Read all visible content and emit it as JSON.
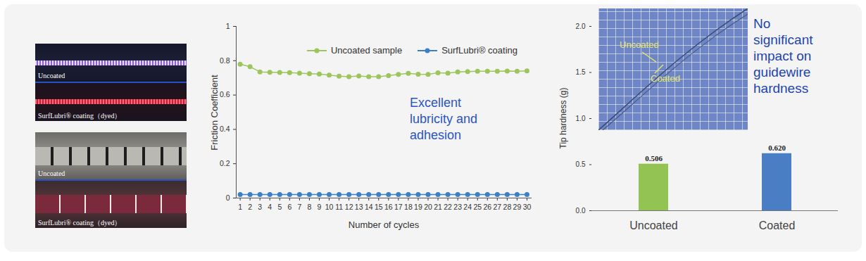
{
  "photos": [
    {
      "labels": [
        "Uncoated",
        "SurfLubri® coating（dyed）"
      ]
    },
    {
      "labels": [
        "Uncoated",
        "SurfLubri® coating（dyed）"
      ]
    }
  ],
  "chart_data": [
    {
      "type": "line",
      "x": [
        1,
        2,
        3,
        4,
        5,
        6,
        7,
        8,
        9,
        10,
        11,
        12,
        13,
        14,
        15,
        16,
        17,
        18,
        19,
        20,
        21,
        22,
        23,
        24,
        25,
        26,
        27,
        28,
        29,
        30
      ],
      "series": [
        {
          "name": "Uncoated sample",
          "color": "#9cc55c",
          "marker": "circle",
          "values": [
            0.78,
            0.765,
            0.735,
            0.733,
            0.732,
            0.731,
            0.727,
            0.724,
            0.722,
            0.716,
            0.71,
            0.707,
            0.711,
            0.707,
            0.707,
            0.713,
            0.72,
            0.726,
            0.721,
            0.72,
            0.73,
            0.727,
            0.735,
            0.737,
            0.739,
            0.739,
            0.739,
            0.74,
            0.739,
            0.741
          ]
        },
        {
          "name": "SurfLubri® coating",
          "color": "#3b7fc8",
          "marker": "circle",
          "values": [
            0.02,
            0.02,
            0.02,
            0.02,
            0.02,
            0.02,
            0.02,
            0.02,
            0.02,
            0.02,
            0.02,
            0.02,
            0.02,
            0.02,
            0.02,
            0.02,
            0.02,
            0.02,
            0.02,
            0.02,
            0.02,
            0.02,
            0.02,
            0.02,
            0.02,
            0.02,
            0.02,
            0.02,
            0.02,
            0.02
          ]
        }
      ],
      "xlabel": "Number of cycles",
      "ylabel": "Friction Coefficient",
      "xlim": [
        0.6,
        30.5
      ],
      "ylim": [
        0,
        1
      ],
      "xticks": [
        1,
        2,
        3,
        4,
        5,
        6,
        7,
        8,
        9,
        10,
        11,
        12,
        13,
        14,
        15,
        16,
        17,
        18,
        19,
        20,
        21,
        22,
        23,
        24,
        25,
        26,
        27,
        28,
        29,
        30
      ],
      "yticks": [
        0,
        0.2,
        0.4,
        0.6,
        0.8,
        1
      ],
      "grid": false,
      "legend": "top-right",
      "annotation": "Excellent lubricity and adhesion"
    },
    {
      "type": "bar",
      "categories": [
        "Uncoated",
        "Coated"
      ],
      "values": [
        0.506,
        0.62
      ],
      "value_labels": [
        "0.506",
        "0.620"
      ],
      "colors": [
        "#92c353",
        "#4a7ec4"
      ],
      "ylabel": "Tip hardness (g)",
      "ylim": [
        0,
        2
      ],
      "yticks": [
        {
          "value": 0,
          "label": "0.0"
        },
        {
          "value": 0.5,
          "label": "0.5"
        },
        {
          "value": 1,
          "label": "1.0"
        },
        {
          "value": 1.5,
          "label": "1.5"
        },
        {
          "value": 2,
          "label": "2.0"
        }
      ],
      "data_labels": true,
      "grid": false,
      "annotation": "No significant impact on guidewire hardness",
      "inset_labels": [
        "Uncoated",
        "Coated"
      ]
    }
  ]
}
